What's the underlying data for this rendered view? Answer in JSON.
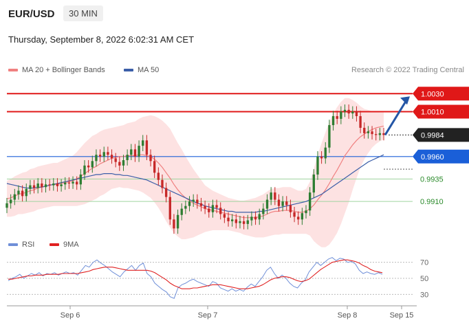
{
  "header": {
    "symbol": "EUR/USD",
    "timeframe": "30 MIN",
    "timestamp": "Thursday, September 8, 2022 6:02:31 AM CET"
  },
  "legend_main": [
    {
      "label": "MA 20 + Bollinger Bands",
      "color": "#f08080"
    },
    {
      "label": "MA 50",
      "color": "#3b5ea8"
    }
  ],
  "legend_rsi": [
    {
      "label": "RSI",
      "color": "#6f8fd8"
    },
    {
      "label": "9MA",
      "color": "#e02020"
    }
  ],
  "credit": "Research © 2022 Trading Central",
  "chart_data": {
    "type": "candlestick",
    "y_range": [
      0.9878,
      1.0044
    ],
    "x_labels": [
      "Sep 6",
      "Sep 7",
      "Sep 8",
      "Sep 15"
    ],
    "levels": [
      {
        "value": 1.003,
        "label": "1.0030",
        "color": "#e01818",
        "style": "resistance"
      },
      {
        "value": 1.001,
        "label": "1.0010",
        "color": "#e01818",
        "style": "resistance"
      },
      {
        "value": 0.9984,
        "label": "0.9984",
        "color": "#333333",
        "style": "last"
      },
      {
        "value": 0.996,
        "label": "0.9960",
        "color": "#1a5fd8",
        "style": "pivot"
      },
      {
        "value": 0.9935,
        "label": "0.9935",
        "color": "#2a8a2a",
        "style": "support"
      },
      {
        "value": 0.991,
        "label": "0.9910",
        "color": "#2a8a2a",
        "style": "support"
      }
    ],
    "close_series": [
      0.9908,
      0.9912,
      0.9918,
      0.9922,
      0.9916,
      0.9924,
      0.9928,
      0.9925,
      0.993,
      0.9926,
      0.9929,
      0.9928,
      0.993,
      0.9927,
      0.9929,
      0.9931,
      0.993,
      0.9932,
      0.9929,
      0.994,
      0.995,
      0.9948,
      0.9955,
      0.9962,
      0.996,
      0.9965,
      0.9962,
      0.9958,
      0.9954,
      0.995,
      0.9956,
      0.9962,
      0.9968,
      0.996,
      0.9972,
      0.9978,
      0.9962,
      0.9955,
      0.9942,
      0.9934,
      0.9925,
      0.9915,
      0.989,
      0.988,
      0.9895,
      0.9902,
      0.9905,
      0.991,
      0.9912,
      0.9908,
      0.9905,
      0.9902,
      0.9898,
      0.9906,
      0.9903,
      0.9896,
      0.9892,
      0.9888,
      0.989,
      0.9886,
      0.9888,
      0.9885,
      0.9889,
      0.9893,
      0.989,
      0.9896,
      0.9902,
      0.9912,
      0.992,
      0.9912,
      0.9905,
      0.991,
      0.9906,
      0.9898,
      0.9893,
      0.989,
      0.9897,
      0.99,
      0.992,
      0.994,
      0.996,
      0.9958,
      0.997,
      0.9995,
      1.0005,
      1.0002,
      1.001,
      1.0012,
      1.0008,
      1.001,
      1.0005,
      0.9992,
      0.9986,
      0.9988,
      0.9985,
      0.9984,
      0.9986,
      0.9984
    ],
    "ma20": [
      0.9913,
      0.9914,
      0.9916,
      0.9918,
      0.9919,
      0.992,
      0.9922,
      0.9923,
      0.9925,
      0.9926,
      0.9927,
      0.9928,
      0.9929,
      0.9929,
      0.993,
      0.9931,
      0.9932,
      0.9933,
      0.9935,
      0.9938,
      0.9941,
      0.9944,
      0.9947,
      0.9949,
      0.9952,
      0.9954,
      0.9956,
      0.9958,
      0.9959,
      0.996,
      0.996,
      0.9961,
      0.9961,
      0.9961,
      0.9962,
      0.9962,
      0.9961,
      0.996,
      0.9957,
      0.9953,
      0.9948,
      0.9942,
      0.9936,
      0.9929,
      0.9923,
      0.9918,
      0.9914,
      0.9911,
      0.9908,
      0.9906,
      0.9904,
      0.9902,
      0.9901,
      0.99,
      0.9899,
      0.9898,
      0.9897,
      0.9896,
      0.9895,
      0.9894,
      0.9893,
      0.9892,
      0.9892,
      0.9892,
      0.9892,
      0.9893,
      0.9894,
      0.9896,
      0.9898,
      0.9899,
      0.9899,
      0.99,
      0.99,
      0.99,
      0.9899,
      0.9898,
      0.9898,
      0.9899,
      0.9902,
      0.9906,
      0.9912,
      0.9917,
      0.9923,
      0.993,
      0.9938,
      0.9945,
      0.9953,
      0.9961,
      0.9967,
      0.9973,
      0.9978,
      0.9982,
      0.9985,
      0.9988,
      0.999,
      0.9992,
      0.9993,
      0.9994
    ],
    "ma50": [
      0.993,
      0.9929,
      0.9928,
      0.9927,
      0.9926,
      0.9925,
      0.9925,
      0.9925,
      0.9926,
      0.9926,
      0.9927,
      0.9928,
      0.9929,
      0.993,
      0.9931,
      0.9932,
      0.9933,
      0.9934,
      0.9935,
      0.9936,
      0.9937,
      0.9938,
      0.9939,
      0.994,
      0.994,
      0.9941,
      0.9941,
      0.9941,
      0.994,
      0.994,
      0.9939,
      0.9939,
      0.9938,
      0.9937,
      0.9936,
      0.9935,
      0.9934,
      0.9932,
      0.993,
      0.9928,
      0.9926,
      0.9924,
      0.9922,
      0.992,
      0.9918,
      0.9916,
      0.9914,
      0.9912,
      0.991,
      0.9908,
      0.9907,
      0.9905,
      0.9904,
      0.9903,
      0.9902,
      0.9901,
      0.99,
      0.9899,
      0.9899,
      0.9898,
      0.9898,
      0.9898,
      0.9898,
      0.9898,
      0.9898,
      0.9899,
      0.9899,
      0.99,
      0.9901,
      0.9902,
      0.9903,
      0.9904,
      0.9905,
      0.9906,
      0.9907,
      0.9908,
      0.9909,
      0.991,
      0.9912,
      0.9914,
      0.9916,
      0.9918,
      0.9921,
      0.9924,
      0.9927,
      0.993,
      0.9933,
      0.9936,
      0.9939,
      0.9942,
      0.9945,
      0.9948,
      0.9951,
      0.9954,
      0.9956,
      0.9958,
      0.996,
      0.9962
    ],
    "band_halfwidth": [
      0.002,
      0.0021,
      0.0022,
      0.0022,
      0.0023,
      0.0023,
      0.0024,
      0.0024,
      0.0024,
      0.0024,
      0.0024,
      0.0024,
      0.0024,
      0.0024,
      0.0025,
      0.0026,
      0.0027,
      0.0028,
      0.003,
      0.0032,
      0.0034,
      0.0035,
      0.0036,
      0.0036,
      0.0036,
      0.0036,
      0.0035,
      0.0034,
      0.0034,
      0.0034,
      0.0035,
      0.0036,
      0.0037,
      0.0038,
      0.004,
      0.0042,
      0.0044,
      0.0046,
      0.0048,
      0.005,
      0.0052,
      0.0054,
      0.0055,
      0.0054,
      0.0052,
      0.005,
      0.0046,
      0.0042,
      0.0038,
      0.0034,
      0.003,
      0.0026,
      0.0024,
      0.0022,
      0.0021,
      0.002,
      0.0019,
      0.0018,
      0.0018,
      0.0018,
      0.0018,
      0.0019,
      0.002,
      0.0021,
      0.0022,
      0.0023,
      0.0024,
      0.0025,
      0.0026,
      0.0026,
      0.0026,
      0.0026,
      0.0026,
      0.0026,
      0.0025,
      0.0024,
      0.0024,
      0.0025,
      0.003,
      0.004,
      0.005,
      0.0058,
      0.0064,
      0.0068,
      0.007,
      0.007,
      0.0068,
      0.0064,
      0.0058,
      0.005,
      0.0042,
      0.0034,
      0.0028,
      0.0024,
      0.002,
      0.0018,
      0.0016,
      0.0015
    ],
    "rsi": {
      "y_ticks": [
        70,
        50,
        30
      ],
      "y_range": [
        20,
        80
      ],
      "rsi": [
        47,
        50,
        52,
        55,
        50,
        53,
        56,
        54,
        57,
        53,
        56,
        55,
        57,
        54,
        56,
        58,
        56,
        57,
        54,
        60,
        66,
        64,
        70,
        73,
        69,
        66,
        62,
        58,
        55,
        52,
        58,
        62,
        66,
        60,
        66,
        69,
        56,
        52,
        44,
        40,
        36,
        33,
        27,
        25,
        38,
        42,
        44,
        47,
        49,
        46,
        44,
        42,
        40,
        46,
        44,
        38,
        36,
        34,
        37,
        34,
        36,
        34,
        39,
        43,
        40,
        46,
        52,
        60,
        64,
        56,
        50,
        54,
        50,
        44,
        40,
        38,
        44,
        48,
        58,
        64,
        70,
        66,
        70,
        74,
        76,
        72,
        75,
        74,
        70,
        71,
        68,
        60,
        56,
        58,
        56,
        55,
        57,
        55
      ],
      "ma9": [
        49,
        49,
        50,
        51,
        52,
        53,
        53,
        54,
        54,
        54,
        55,
        55,
        55,
        55,
        56,
        56,
        56,
        56,
        56,
        57,
        58,
        59,
        61,
        62,
        63,
        64,
        64,
        64,
        63,
        62,
        61,
        60,
        60,
        60,
        60,
        60,
        60,
        59,
        57,
        54,
        51,
        48,
        44,
        41,
        39,
        37,
        37,
        37,
        38,
        38,
        39,
        40,
        41,
        42,
        42,
        42,
        41,
        40,
        39,
        38,
        37,
        37,
        37,
        38,
        39,
        40,
        42,
        45,
        48,
        50,
        51,
        52,
        52,
        51,
        49,
        47,
        46,
        47,
        49,
        53,
        57,
        61,
        64,
        67,
        70,
        71,
        72,
        73,
        73,
        72,
        71,
        69,
        66,
        64,
        61,
        59,
        58,
        57
      ]
    }
  }
}
